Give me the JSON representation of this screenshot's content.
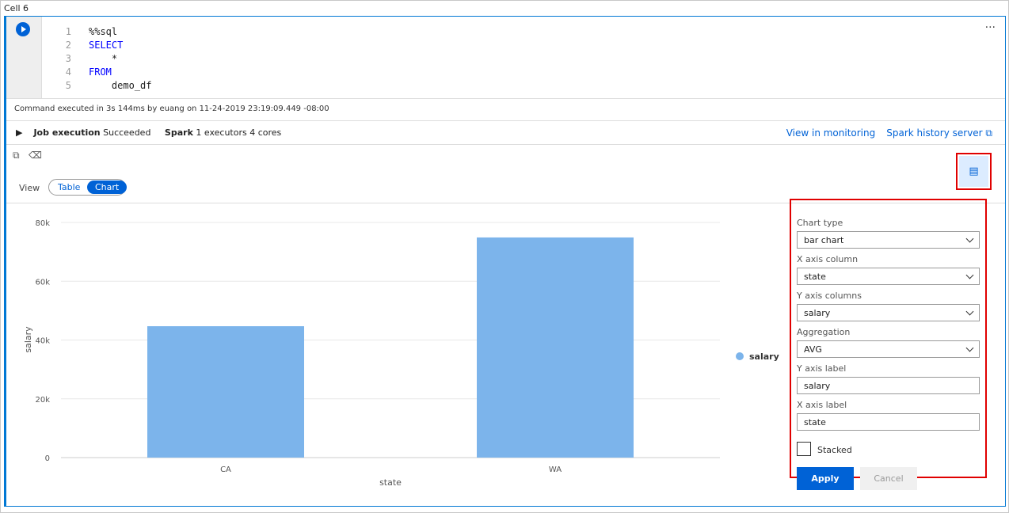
{
  "cell": {
    "title": "Cell 6",
    "more": "···"
  },
  "code": [
    {
      "n": "1",
      "text": "%%sql",
      "kw": false
    },
    {
      "n": "2",
      "text": "SELECT",
      "kw": true
    },
    {
      "n": "3",
      "text": "    *",
      "kw": false
    },
    {
      "n": "4",
      "text": "FROM",
      "kw": true
    },
    {
      "n": "5",
      "text": "    demo_df",
      "kw": false
    }
  ],
  "status": "Command executed in 3s 144ms by euang on 11-24-2019 23:19:09.449 -08:00",
  "job": {
    "label": "Job execution",
    "state": "Succeeded",
    "spark_label": "Spark",
    "spark_info": "1 executors 4 cores"
  },
  "links": {
    "monitoring": "View in monitoring",
    "history": "Spark history server ⧉"
  },
  "view": {
    "label": "View",
    "table": "Table",
    "chart": "Chart",
    "selected": "Chart"
  },
  "panel": {
    "chart_type_label": "Chart type",
    "chart_type": "bar chart",
    "x_col_label": "X axis column",
    "x_col": "state",
    "y_col_label": "Y axis columns",
    "y_col": "salary",
    "agg_label": "Aggregation",
    "agg": "AVG",
    "y_label_label": "Y axis label",
    "y_label": "salary",
    "x_label_label": "X axis label",
    "x_label": "state",
    "stacked": "Stacked",
    "stacked_checked": false,
    "apply": "Apply",
    "cancel": "Cancel"
  },
  "colors": {
    "accent": "#0062d6",
    "bar": "#7cb4eb",
    "highlight": "#e00000"
  },
  "chart_data": {
    "type": "bar",
    "categories": [
      "CA",
      "WA"
    ],
    "series": [
      {
        "name": "salary",
        "values": [
          44700,
          74900
        ]
      }
    ],
    "xlabel": "state",
    "ylabel": "salary",
    "ylim": [
      0,
      80000
    ],
    "yticks": [
      "0",
      "20k",
      "40k",
      "60k",
      "80k"
    ],
    "grid": true,
    "legend": "right"
  }
}
